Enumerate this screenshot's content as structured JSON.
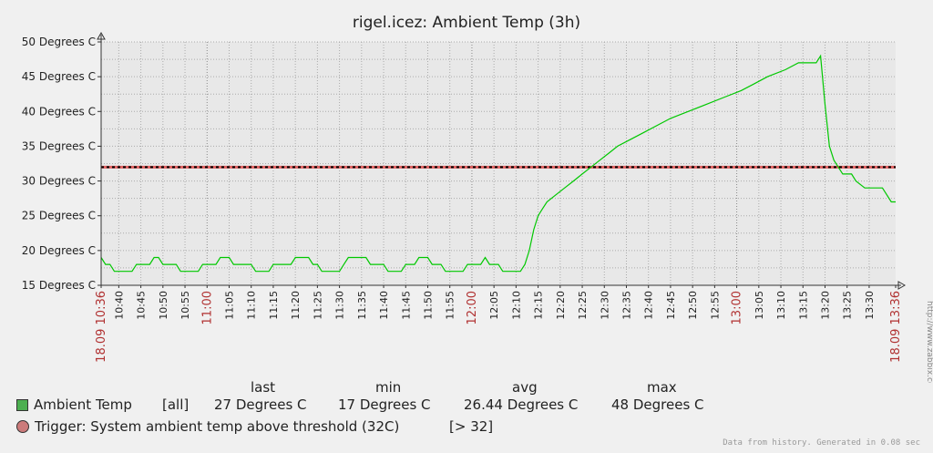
{
  "chart_data": {
    "type": "line",
    "title": "rigel.icez: Ambient Temp  (3h)",
    "y_ticks": [
      {
        "value": 15,
        "label": "15 Degrees C"
      },
      {
        "value": 20,
        "label": "20 Degrees C"
      },
      {
        "value": 25,
        "label": "25 Degrees C"
      },
      {
        "value": 30,
        "label": "30 Degrees C"
      },
      {
        "value": 35,
        "label": "35 Degrees C"
      },
      {
        "value": 40,
        "label": "40 Degrees C"
      },
      {
        "value": 45,
        "label": "45 Degrees C"
      },
      {
        "value": 50,
        "label": "50 Degrees C"
      }
    ],
    "ylim": [
      15,
      50
    ],
    "x_range": [
      "10:36",
      "13:36"
    ],
    "x_ticks": [
      {
        "time": "10:36",
        "label": "18.09 10:36",
        "highlight": true
      },
      {
        "time": "10:40",
        "label": "10:40",
        "highlight": false
      },
      {
        "time": "10:45",
        "label": "10:45",
        "highlight": false
      },
      {
        "time": "10:50",
        "label": "10:50",
        "highlight": false
      },
      {
        "time": "10:55",
        "label": "10:55",
        "highlight": false
      },
      {
        "time": "11:00",
        "label": "11:00",
        "highlight": true
      },
      {
        "time": "11:05",
        "label": "11:05",
        "highlight": false
      },
      {
        "time": "11:10",
        "label": "11:10",
        "highlight": false
      },
      {
        "time": "11:15",
        "label": "11:15",
        "highlight": false
      },
      {
        "time": "11:20",
        "label": "11:20",
        "highlight": false
      },
      {
        "time": "11:25",
        "label": "11:25",
        "highlight": false
      },
      {
        "time": "11:30",
        "label": "11:30",
        "highlight": false
      },
      {
        "time": "11:35",
        "label": "11:35",
        "highlight": false
      },
      {
        "time": "11:40",
        "label": "11:40",
        "highlight": false
      },
      {
        "time": "11:45",
        "label": "11:45",
        "highlight": false
      },
      {
        "time": "11:50",
        "label": "11:50",
        "highlight": false
      },
      {
        "time": "11:55",
        "label": "11:55",
        "highlight": false
      },
      {
        "time": "12:00",
        "label": "12:00",
        "highlight": true
      },
      {
        "time": "12:05",
        "label": "12:05",
        "highlight": false
      },
      {
        "time": "12:10",
        "label": "12:10",
        "highlight": false
      },
      {
        "time": "12:15",
        "label": "12:15",
        "highlight": false
      },
      {
        "time": "12:20",
        "label": "12:20",
        "highlight": false
      },
      {
        "time": "12:25",
        "label": "12:25",
        "highlight": false
      },
      {
        "time": "12:30",
        "label": "12:30",
        "highlight": false
      },
      {
        "time": "12:35",
        "label": "12:35",
        "highlight": false
      },
      {
        "time": "12:40",
        "label": "12:40",
        "highlight": false
      },
      {
        "time": "12:45",
        "label": "12:45",
        "highlight": false
      },
      {
        "time": "12:50",
        "label": "12:50",
        "highlight": false
      },
      {
        "time": "12:55",
        "label": "12:55",
        "highlight": false
      },
      {
        "time": "13:00",
        "label": "13:00",
        "highlight": true
      },
      {
        "time": "13:05",
        "label": "13:05",
        "highlight": false
      },
      {
        "time": "13:10",
        "label": "13:10",
        "highlight": false
      },
      {
        "time": "13:15",
        "label": "13:15",
        "highlight": false
      },
      {
        "time": "13:20",
        "label": "13:20",
        "highlight": false
      },
      {
        "time": "13:25",
        "label": "13:25",
        "highlight": false
      },
      {
        "time": "13:30",
        "label": "13:30",
        "highlight": false
      },
      {
        "time": "13:36",
        "label": "18.09 13:36",
        "highlight": true
      }
    ],
    "grid": true,
    "series": [
      {
        "name": "Ambient Temp",
        "color": "#00c800",
        "points": [
          [
            "10:36",
            19
          ],
          [
            "10:37",
            18
          ],
          [
            "10:38",
            18
          ],
          [
            "10:39",
            17
          ],
          [
            "10:43",
            17
          ],
          [
            "10:44",
            18
          ],
          [
            "10:47",
            18
          ],
          [
            "10:48",
            19
          ],
          [
            "10:49",
            19
          ],
          [
            "10:50",
            18
          ],
          [
            "10:53",
            18
          ],
          [
            "10:54",
            17
          ],
          [
            "10:58",
            17
          ],
          [
            "10:59",
            18
          ],
          [
            "11:02",
            18
          ],
          [
            "11:03",
            19
          ],
          [
            "11:05",
            19
          ],
          [
            "11:06",
            18
          ],
          [
            "11:10",
            18
          ],
          [
            "11:11",
            17
          ],
          [
            "11:14",
            17
          ],
          [
            "11:15",
            18
          ],
          [
            "11:19",
            18
          ],
          [
            "11:20",
            19
          ],
          [
            "11:23",
            19
          ],
          [
            "11:24",
            18
          ],
          [
            "11:25",
            18
          ],
          [
            "11:26",
            17
          ],
          [
            "11:30",
            17
          ],
          [
            "11:31",
            18
          ],
          [
            "11:32",
            19
          ],
          [
            "11:36",
            19
          ],
          [
            "11:37",
            18
          ],
          [
            "11:40",
            18
          ],
          [
            "11:41",
            17
          ],
          [
            "11:44",
            17
          ],
          [
            "11:45",
            18
          ],
          [
            "11:47",
            18
          ],
          [
            "11:48",
            19
          ],
          [
            "11:50",
            19
          ],
          [
            "11:51",
            18
          ],
          [
            "11:53",
            18
          ],
          [
            "11:54",
            17
          ],
          [
            "11:58",
            17
          ],
          [
            "11:59",
            18
          ],
          [
            "12:02",
            18
          ],
          [
            "12:03",
            19
          ],
          [
            "12:04",
            18
          ],
          [
            "12:06",
            18
          ],
          [
            "12:07",
            17
          ],
          [
            "12:11",
            17
          ],
          [
            "12:12",
            18
          ],
          [
            "12:13",
            20
          ],
          [
            "12:14",
            23
          ],
          [
            "12:15",
            25
          ],
          [
            "12:16",
            26
          ],
          [
            "12:17",
            27
          ],
          [
            "12:19",
            28
          ],
          [
            "12:21",
            29
          ],
          [
            "12:23",
            30
          ],
          [
            "12:25",
            31
          ],
          [
            "12:27",
            32
          ],
          [
            "12:29",
            33
          ],
          [
            "12:31",
            34
          ],
          [
            "12:33",
            35
          ],
          [
            "12:36",
            36
          ],
          [
            "12:39",
            37
          ],
          [
            "12:42",
            38
          ],
          [
            "12:45",
            39
          ],
          [
            "12:49",
            40
          ],
          [
            "12:53",
            41
          ],
          [
            "12:57",
            42
          ],
          [
            "13:01",
            43
          ],
          [
            "13:04",
            44
          ],
          [
            "13:07",
            45
          ],
          [
            "13:11",
            46
          ],
          [
            "13:14",
            47
          ],
          [
            "13:18",
            47
          ],
          [
            "13:19",
            48
          ],
          [
            "13:20",
            41
          ],
          [
            "13:21",
            35
          ],
          [
            "13:22",
            33
          ],
          [
            "13:24",
            31
          ],
          [
            "13:26",
            31
          ],
          [
            "13:27",
            30
          ],
          [
            "13:29",
            29
          ],
          [
            "13:33",
            29
          ],
          [
            "13:35",
            27
          ],
          [
            "13:36",
            27
          ]
        ]
      }
    ],
    "threshold": {
      "value": 32,
      "color": "#e06060"
    }
  },
  "legend": {
    "headers": {
      "last": "last",
      "min": "min",
      "avg": "avg",
      "max": "max"
    },
    "series_row": {
      "name": "Ambient Temp",
      "func": "[all]",
      "last": "27 Degrees C",
      "min": "17 Degrees C",
      "avg": "26.44 Degrees C",
      "max": "48 Degrees C",
      "color": "#4caf50"
    },
    "trigger_row": {
      "label": "Trigger: System ambient temp above threshold (32C)",
      "condition": "[> 32]",
      "color": "#cc7b7b"
    }
  },
  "side_watermark": "http://www.zabbix.com",
  "footer": "Data from history. Generated in 0.08 sec",
  "colors": {
    "plot_bg": "#e8e8e8",
    "grid": "#aaaaaa",
    "highlight_tick": "#b03030"
  }
}
